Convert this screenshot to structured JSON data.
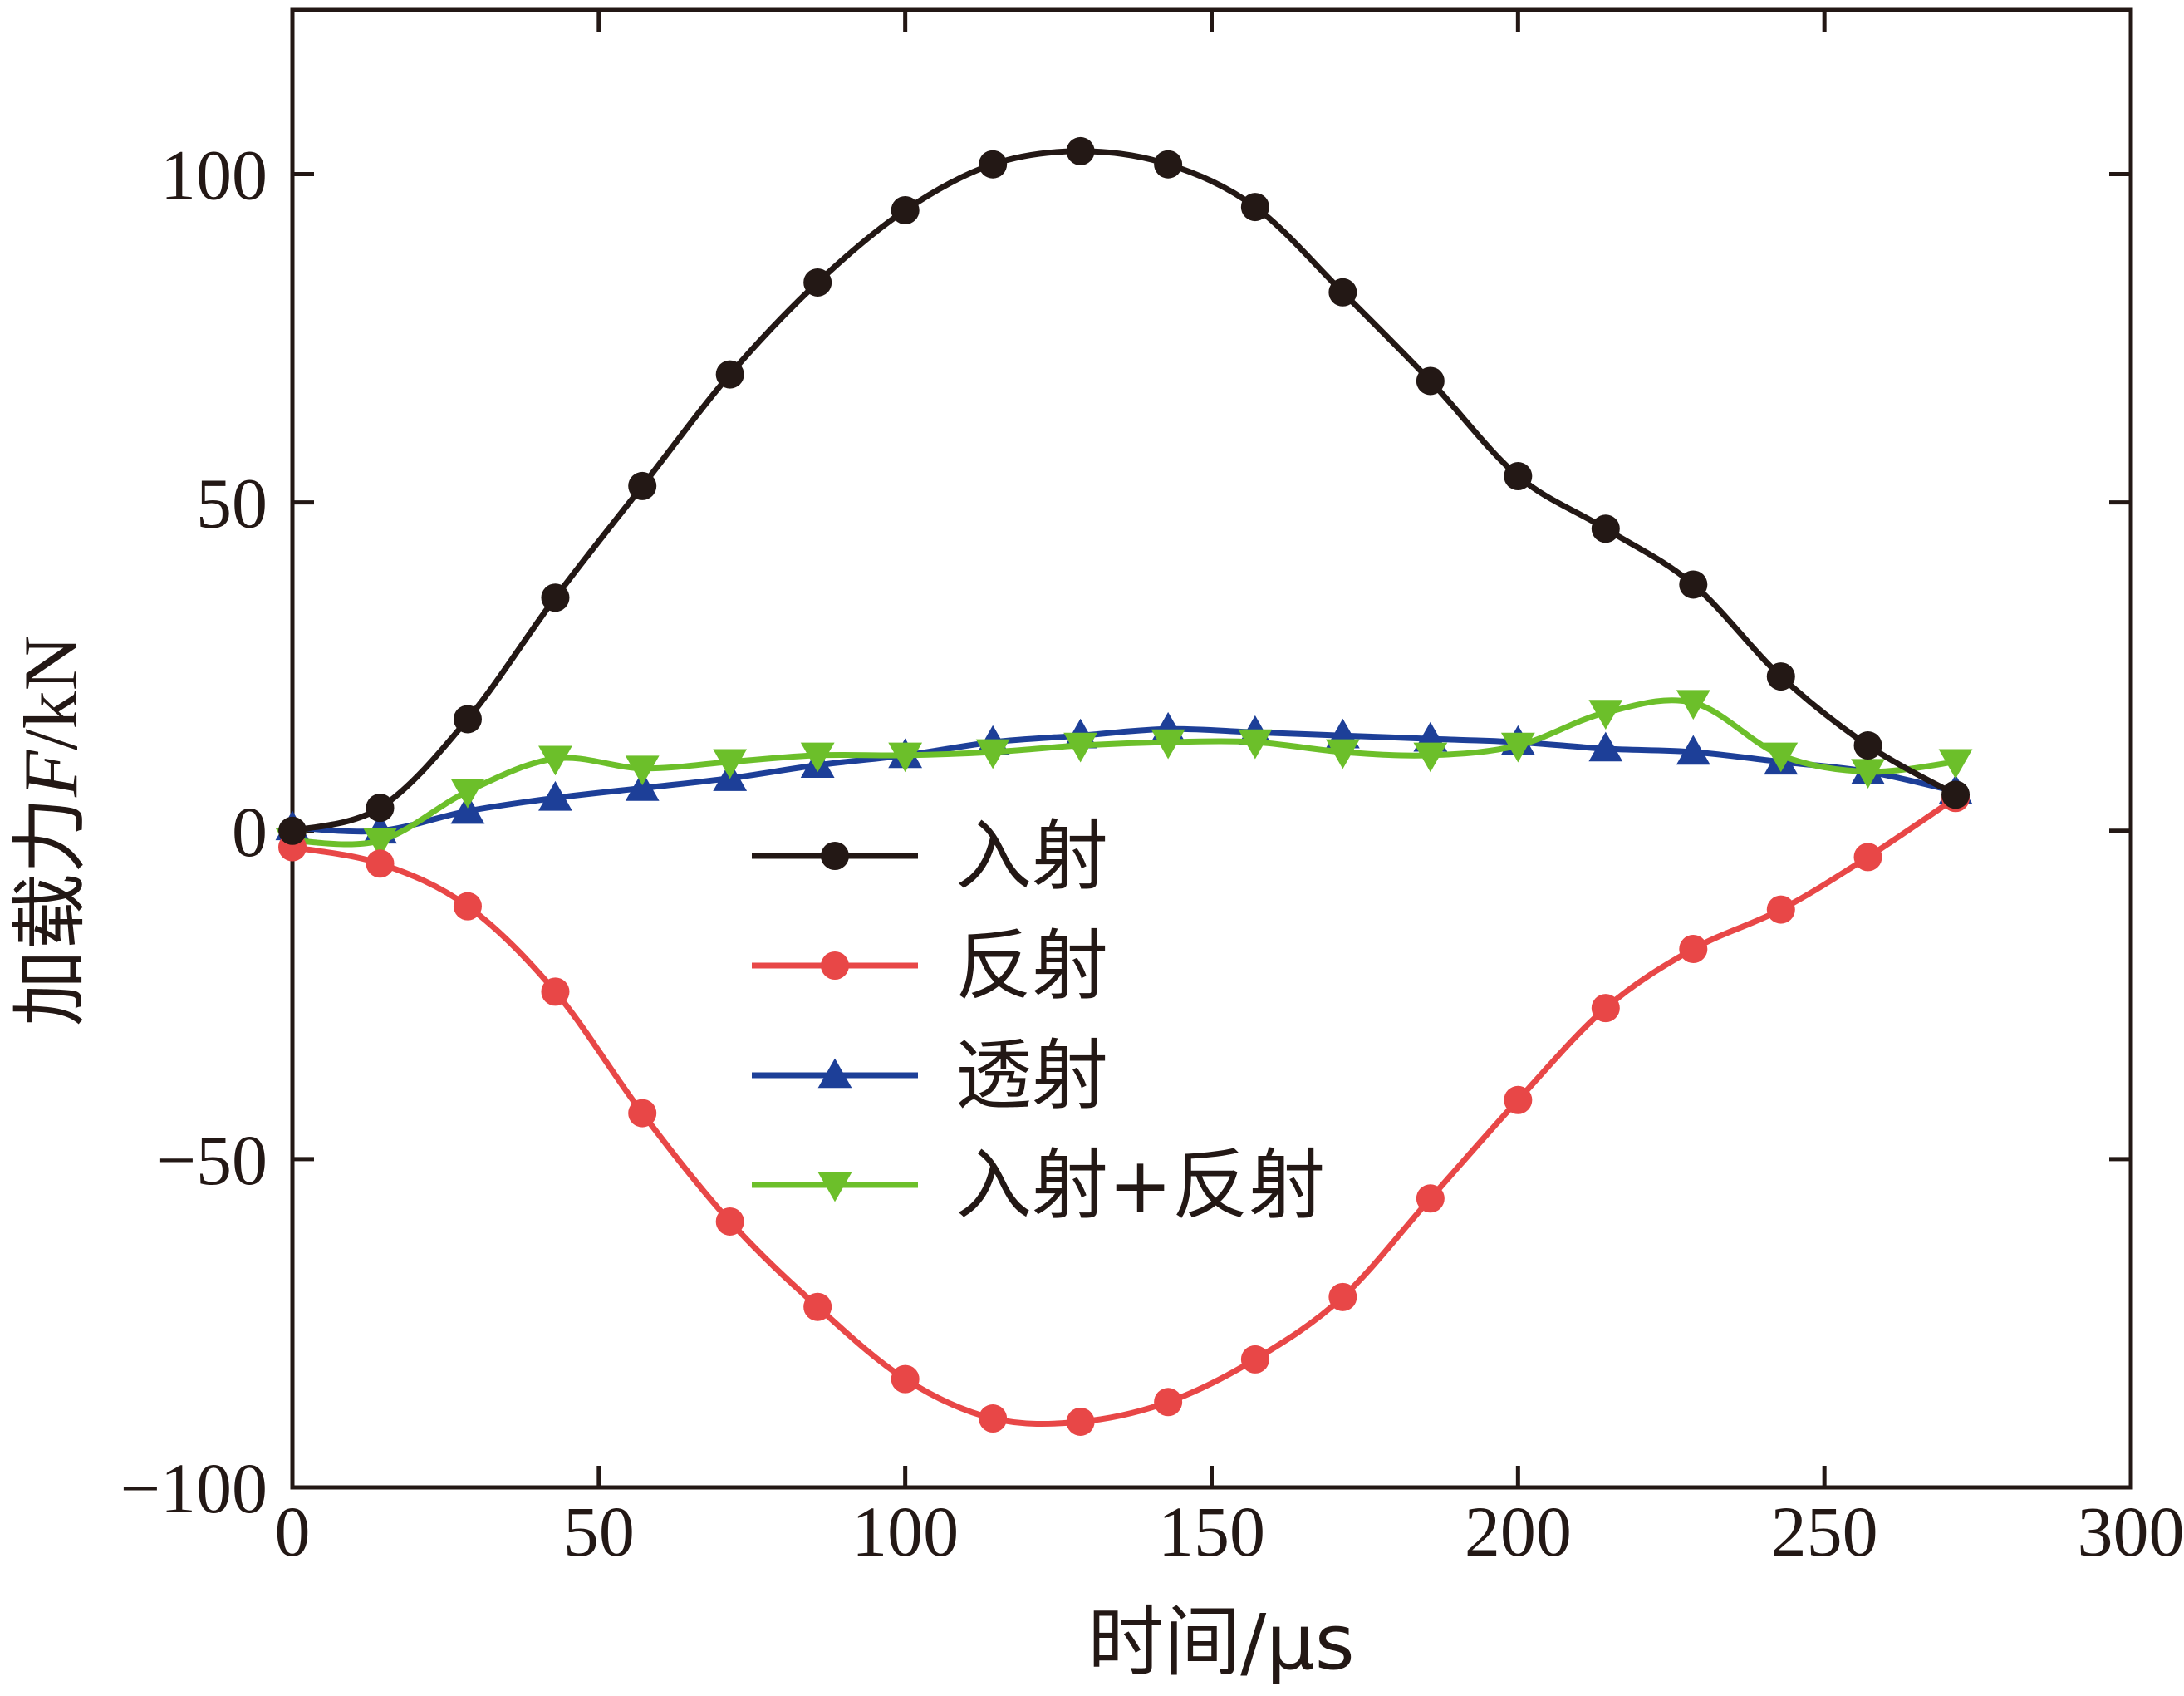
{
  "chart_data": {
    "type": "line",
    "xlabel": "时间/μs",
    "ylabel_prefix": "加载力",
    "ylabel_var": "F",
    "ylabel_unit": "/kN",
    "xlim": [
      0,
      300
    ],
    "ylim": [
      -100,
      125
    ],
    "x_ticks": [
      0,
      50,
      100,
      150,
      200,
      250,
      300
    ],
    "y_ticks": [
      -100,
      -50,
      0,
      50,
      100
    ],
    "y_tick_labels": [
      "−100",
      "−50",
      "0",
      "50",
      "100"
    ],
    "grid": false,
    "legend_position": "center",
    "x": [
      0,
      14.3,
      28.6,
      42.9,
      57.1,
      71.4,
      85.7,
      100,
      114.3,
      128.6,
      142.9,
      157.1,
      171.4,
      185.7,
      200,
      214.3,
      228.6,
      242.9,
      257.1,
      271.4
    ],
    "series": [
      {
        "name": "入射",
        "color": "#231815",
        "marker": "circle",
        "values": [
          0,
          3.5,
          17,
          35.5,
          52.5,
          69.5,
          83.5,
          94.5,
          101.5,
          103.5,
          101.5,
          95,
          82,
          68.5,
          54,
          46,
          37.5,
          23.5,
          13,
          5.5
        ]
      },
      {
        "name": "反射",
        "color": "#e84747",
        "marker": "circle",
        "values": [
          -2.5,
          -5,
          -11.5,
          -24.5,
          -43,
          -59.5,
          -72.5,
          -83.5,
          -89.5,
          -90,
          -87,
          -80.5,
          -71,
          -56,
          -41,
          -27,
          -18,
          -12,
          -4,
          5
        ]
      },
      {
        "name": "透射",
        "color": "#1d3f98",
        "marker": "triangle-up",
        "values": [
          0.5,
          0,
          3,
          5,
          6.5,
          8,
          10,
          11.5,
          13.5,
          14.5,
          15.5,
          15,
          14.5,
          14,
          13.5,
          12.5,
          12,
          10.5,
          9,
          6
        ]
      },
      {
        "name": "入射+反射",
        "color": "#6cbf2a",
        "marker": "triangle-down",
        "values": [
          -1.5,
          -1.5,
          6,
          11,
          9.5,
          10.5,
          11.5,
          11.5,
          12,
          13,
          13.5,
          13.5,
          12,
          11.5,
          13,
          18,
          19.5,
          11.5,
          9,
          10.5
        ]
      }
    ]
  }
}
